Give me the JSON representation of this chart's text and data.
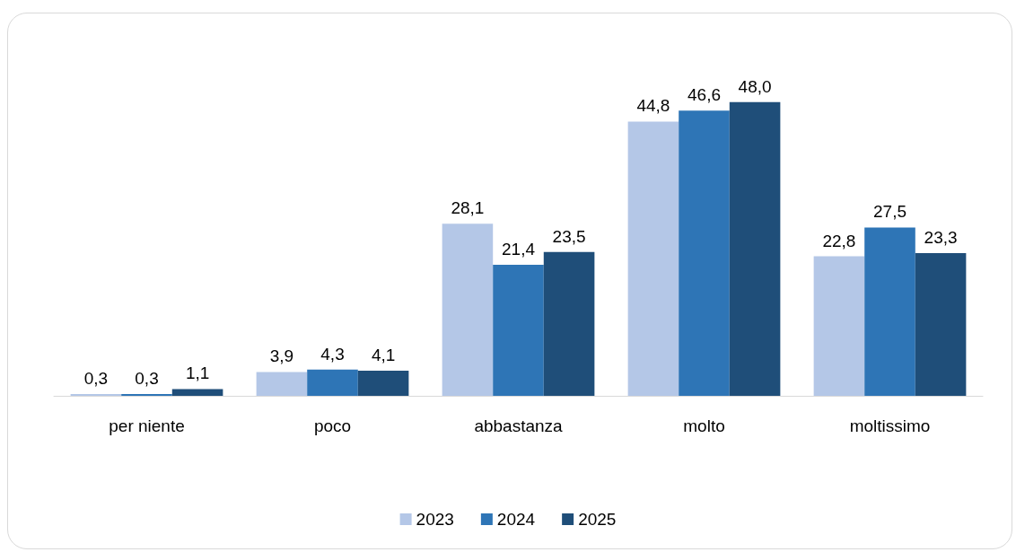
{
  "chart_data": {
    "type": "bar",
    "categories": [
      "per niente",
      "poco",
      "abbastanza",
      "molto",
      "moltissimo"
    ],
    "series": [
      {
        "name": "2023",
        "color": "#b4c7e7",
        "values": [
          0.3,
          3.9,
          28.1,
          44.8,
          22.8
        ],
        "value_labels": [
          "0,3",
          "3,9",
          "28,1",
          "44,8",
          "22,8"
        ]
      },
      {
        "name": "2024",
        "color": "#2e75b6",
        "values": [
          0.3,
          4.3,
          21.4,
          46.6,
          27.5
        ],
        "value_labels": [
          "0,3",
          "4,3",
          "21,4",
          "46,6",
          "27,5"
        ]
      },
      {
        "name": "2025",
        "color": "#1f4e79",
        "values": [
          1.1,
          4.1,
          23.5,
          48.0,
          23.3
        ],
        "value_labels": [
          "1,1",
          "4,1",
          "23,5",
          "48,0",
          "23,3"
        ]
      }
    ],
    "legend": "bottom"
  }
}
